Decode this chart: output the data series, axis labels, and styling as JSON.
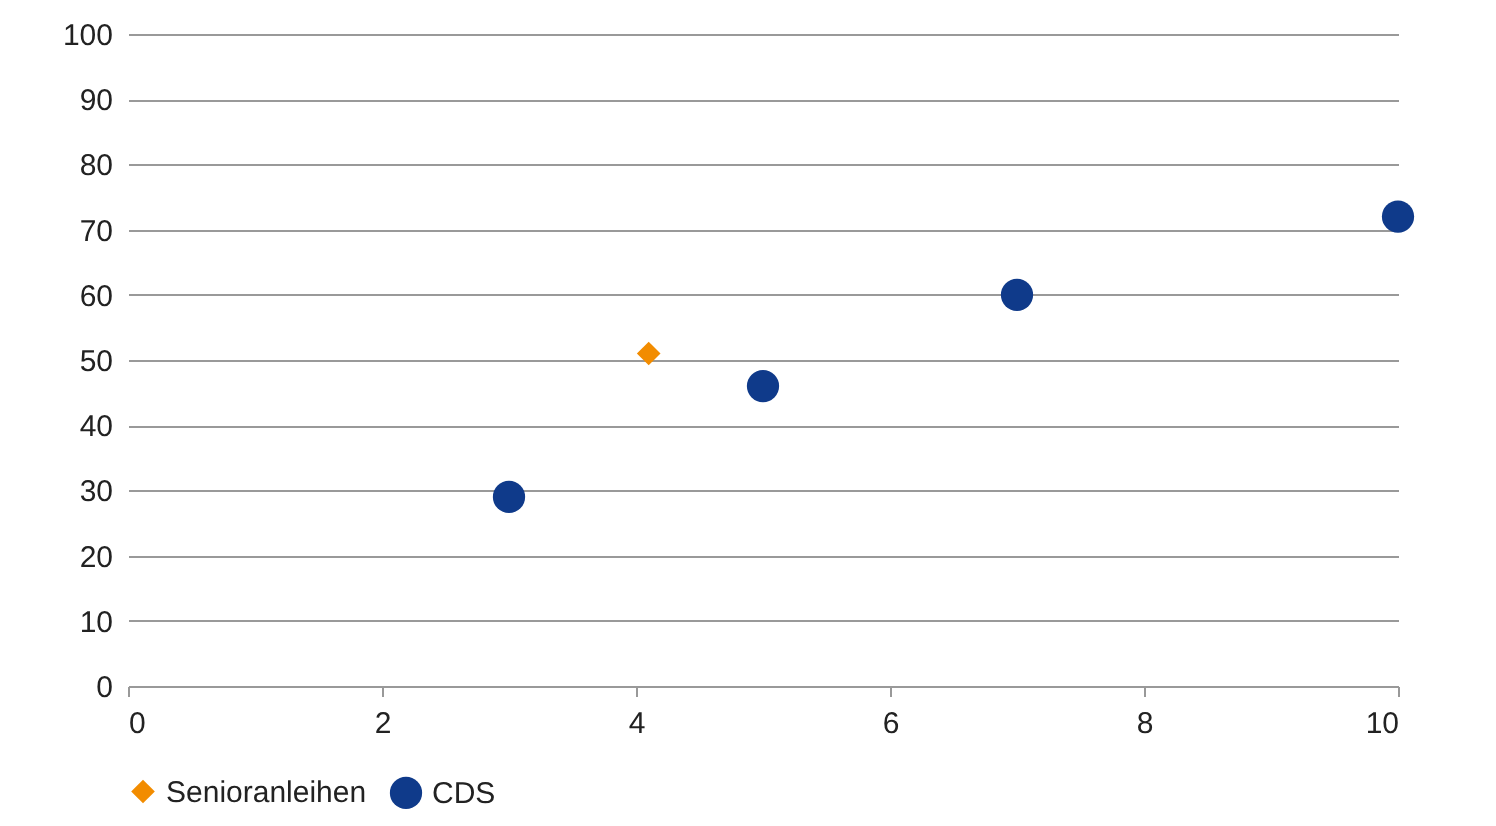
{
  "chart_data": {
    "type": "scatter",
    "xlim": [
      0,
      10
    ],
    "xticks": [
      0,
      2,
      4,
      6,
      8,
      10
    ],
    "ylim": [
      0,
      100
    ],
    "yticks": [
      0,
      10,
      20,
      30,
      40,
      50,
      60,
      70,
      80,
      90,
      100
    ],
    "grid": "y",
    "legend": "bottom",
    "series": [
      {
        "name": "Senioranleihen",
        "color": "#f28c00",
        "marker": "diamond",
        "x": [
          4.1
        ],
        "values": [
          51
        ]
      },
      {
        "name": "CDS",
        "color": "#0f3a8a",
        "marker": "circle",
        "x": [
          3,
          5,
          7,
          10
        ],
        "values": [
          29,
          46,
          60,
          72
        ]
      }
    ]
  }
}
